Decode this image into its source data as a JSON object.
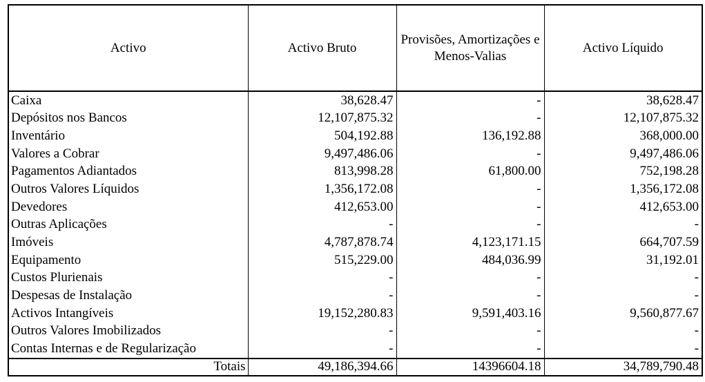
{
  "headers": [
    "Activo",
    "Activo Bruto",
    "Provisões, Amortizações e Menos-Valias",
    "Activo Líquido"
  ],
  "rows": [
    [
      "Caixa",
      "38,628.47",
      "-",
      "38,628.47"
    ],
    [
      "Depósitos nos Bancos",
      "12,107,875.32",
      "-",
      "12,107,875.32"
    ],
    [
      "Inventário",
      "504,192.88",
      "136,192.88",
      "368,000.00"
    ],
    [
      "Valores a Cobrar",
      "9,497,486.06",
      "-",
      "9,497,486.06"
    ],
    [
      "Pagamentos Adiantados",
      "813,998.28",
      "61,800.00",
      "752,198.28"
    ],
    [
      "Outros Valores Líquidos",
      "1,356,172.08",
      "-",
      "1,356,172.08"
    ],
    [
      "Devedores",
      "412,653.00",
      "-",
      "412,653.00"
    ],
    [
      "Outras Aplicações",
      "-",
      "-",
      "-"
    ],
    [
      "Imóveis",
      "4,787,878.74",
      "4,123,171.15",
      "664,707.59"
    ],
    [
      "Equipamento",
      "515,229.00",
      "484,036.99",
      "31,192.01"
    ],
    [
      "Custos Plurienais",
      "-",
      "-",
      "-"
    ],
    [
      "Despesas de Instalação",
      "-",
      "-",
      "-"
    ],
    [
      "Activos Intangíveis",
      "19,152,280.83",
      "9,591,403.16",
      "9,560,877.67"
    ],
    [
      "Outros Valores Imobilizados",
      "-",
      "-",
      "-"
    ],
    [
      "Contas Internas e de Regularização",
      "-",
      "-",
      "-"
    ]
  ],
  "totals": [
    "Totais",
    "49,186,394.66",
    "14396604.18",
    "34,789,790.48"
  ]
}
